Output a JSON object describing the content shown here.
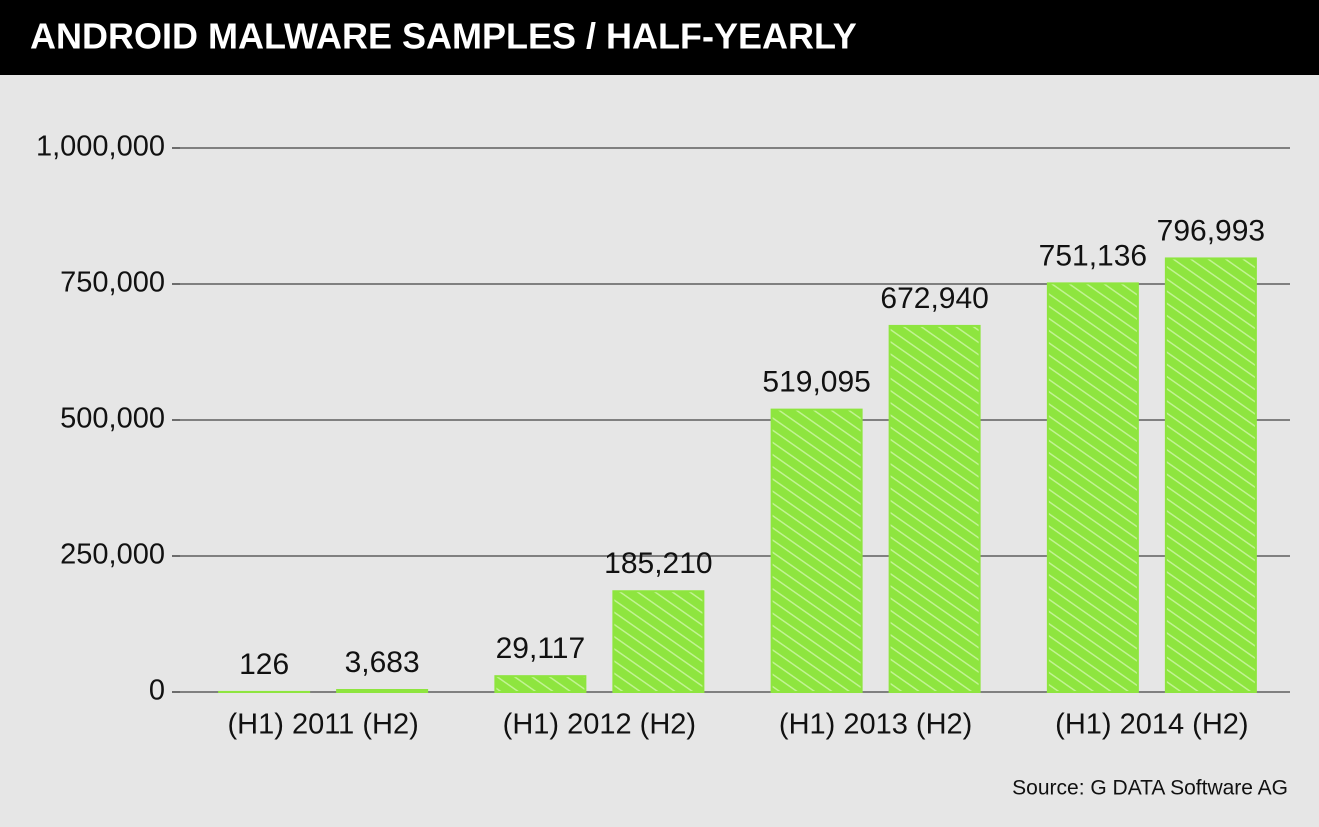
{
  "chart_data": {
    "type": "bar",
    "title": "ANDROID MALWARE SAMPLES / HALF-YEARLY",
    "source": "Source: G DATA Software AG",
    "categories": [
      "(H1) 2011 (H2)",
      "(H1) 2012 (H2)",
      "(H1) 2013 (H2)",
      "(H1) 2014 (H2)"
    ],
    "series": [
      {
        "color": "#8ee53f",
        "values": [
          126,
          29117,
          519095,
          751136
        ],
        "value_labels": [
          "126",
          "29,117",
          "519,095",
          "751,136"
        ]
      },
      {
        "color": "#8ee53f",
        "values": [
          3683,
          185210,
          672940,
          796993
        ],
        "value_labels": [
          "3,683",
          "185,210",
          "672,940",
          "796,993"
        ]
      }
    ],
    "ylim": [
      0,
      1000000
    ],
    "yticks": [
      0,
      {
        "value": 250000,
        "label": "250,000"
      },
      {
        "value": 500000,
        "label": "500,000"
      },
      {
        "value": 750000,
        "label": "750,000"
      },
      {
        "value": 1000000,
        "label": "1,000,000"
      }
    ],
    "grid": true
  }
}
